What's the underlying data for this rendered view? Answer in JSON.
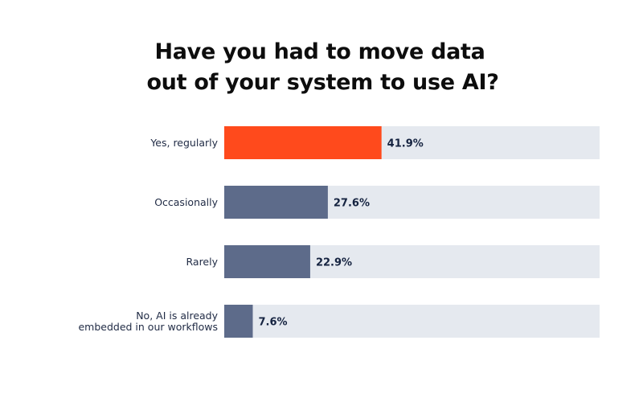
{
  "title_line1": "Have you had to move data",
  "title_line2": "out of your system to use AI?",
  "chart_data": {
    "type": "bar",
    "orientation": "horizontal",
    "title": "Have you had to move data out of your system to use AI?",
    "categories": [
      [
        "Yes, regularly"
      ],
      [
        "Occasionally"
      ],
      [
        "Rarely"
      ],
      [
        "No, AI is already",
        "embedded in our workflows"
      ]
    ],
    "values": [
      41.9,
      27.6,
      22.9,
      7.6
    ],
    "value_labels": [
      "41.9%",
      "27.6%",
      "22.9%",
      "7.6%"
    ],
    "xlim": [
      0,
      100
    ],
    "grid": false,
    "legend": "none",
    "colors": {
      "highlight": "#ff4a1c",
      "bar": "#5d6b8a",
      "track": "#e5e9ef",
      "label": "#1f2a44",
      "value": "#152340"
    },
    "highlight_index": 0
  }
}
